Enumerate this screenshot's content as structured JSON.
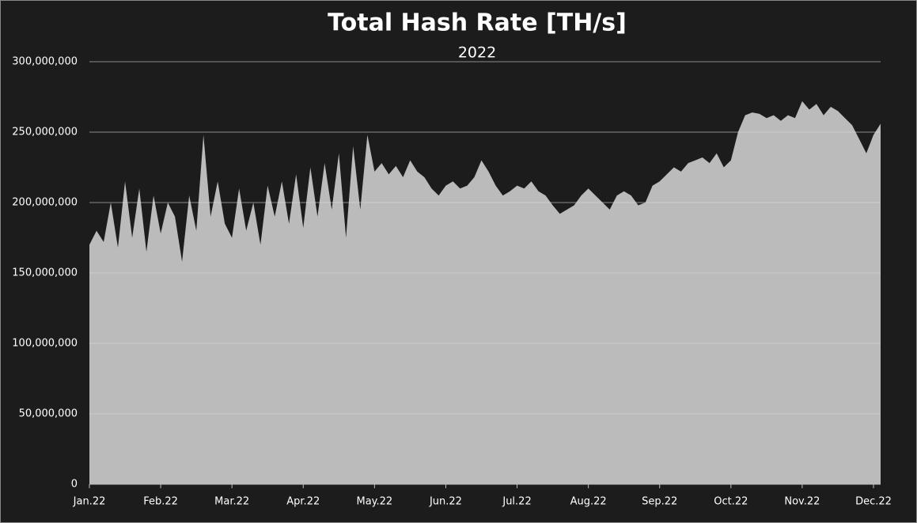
{
  "chart_data": {
    "type": "area",
    "title": "Total Hash Rate [TH/s]",
    "subtitle": "2022",
    "categories": [
      "Jan.22",
      null,
      null,
      null,
      null,
      null,
      null,
      null,
      null,
      null,
      "Feb.22",
      null,
      null,
      null,
      null,
      null,
      null,
      null,
      null,
      null,
      "Mar.22",
      null,
      null,
      null,
      null,
      null,
      null,
      null,
      null,
      null,
      "Apr.22",
      null,
      null,
      null,
      null,
      null,
      null,
      null,
      null,
      null,
      "May.22",
      null,
      null,
      null,
      null,
      null,
      null,
      null,
      null,
      null,
      "Jun.22",
      null,
      null,
      null,
      null,
      null,
      null,
      null,
      null,
      null,
      "Jul.22",
      null,
      null,
      null,
      null,
      null,
      null,
      null,
      null,
      null,
      "Aug.22",
      null,
      null,
      null,
      null,
      null,
      null,
      null,
      null,
      null,
      "Sep.22",
      null,
      null,
      null,
      null,
      null,
      null,
      null,
      null,
      null,
      "Oct.22",
      null,
      null,
      null,
      null,
      null,
      null,
      null,
      null,
      null,
      "Nov.22",
      null,
      null,
      null,
      null,
      null,
      null,
      null,
      null,
      null,
      "Dec.22",
      null
    ],
    "values": [
      170000000,
      180000000,
      172000000,
      200000000,
      168000000,
      215000000,
      175000000,
      210000000,
      165000000,
      205000000,
      178000000,
      200000000,
      190000000,
      158000000,
      205000000,
      180000000,
      248000000,
      190000000,
      215000000,
      185000000,
      175000000,
      210000000,
      180000000,
      200000000,
      170000000,
      212000000,
      190000000,
      215000000,
      185000000,
      220000000,
      182000000,
      225000000,
      190000000,
      228000000,
      195000000,
      235000000,
      175000000,
      240000000,
      195000000,
      248000000,
      222000000,
      228000000,
      220000000,
      226000000,
      218000000,
      230000000,
      222000000,
      218000000,
      210000000,
      205000000,
      212000000,
      215000000,
      210000000,
      212000000,
      218000000,
      230000000,
      222000000,
      212000000,
      205000000,
      208000000,
      212000000,
      210000000,
      215000000,
      208000000,
      205000000,
      198000000,
      192000000,
      195000000,
      198000000,
      205000000,
      210000000,
      205000000,
      200000000,
      195000000,
      205000000,
      208000000,
      205000000,
      198000000,
      200000000,
      212000000,
      215000000,
      220000000,
      225000000,
      222000000,
      228000000,
      230000000,
      232000000,
      228000000,
      235000000,
      225000000,
      230000000,
      250000000,
      262000000,
      264000000,
      263000000,
      260000000,
      262000000,
      258000000,
      262000000,
      260000000,
      272000000,
      266000000,
      270000000,
      262000000,
      268000000,
      265000000,
      260000000,
      255000000,
      245000000,
      235000000,
      248000000,
      256000000
    ],
    "color": "#c9c9c9",
    "ylim": [
      0,
      300000000
    ],
    "yticks": [
      0,
      {
        "value": 50000000,
        "label": "50,000,000"
      },
      {
        "value": 100000000,
        "label": "100,000,000"
      },
      {
        "value": 150000000,
        "label": "150,000,000"
      },
      {
        "value": 200000000,
        "label": "200,000,000"
      },
      {
        "value": 250000000,
        "label": "250,000,000"
      },
      {
        "value": 300000000,
        "label": "300,000,000"
      }
    ],
    "grid": true
  }
}
